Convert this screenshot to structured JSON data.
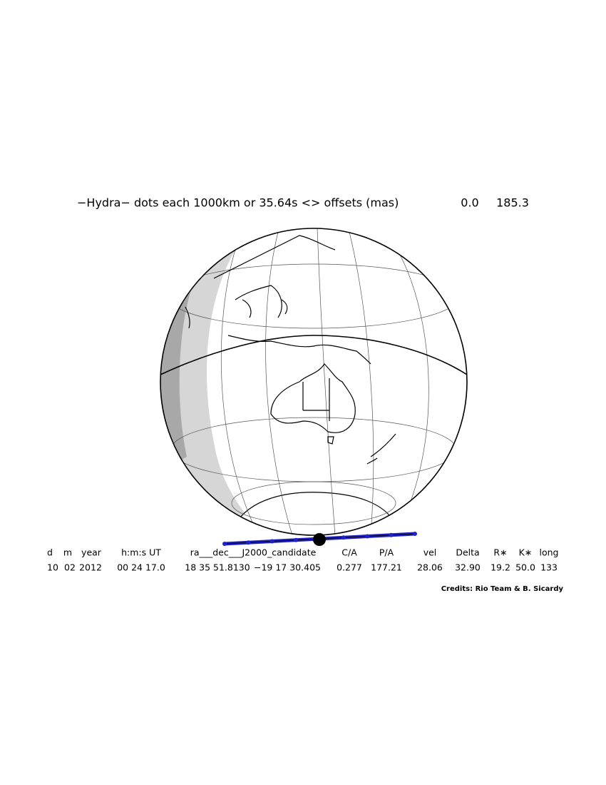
{
  "title": "−Hydra− dots each 1000km or 35.64s <> offsets (mas)",
  "offsets": [
    "0.0",
    "185.3"
  ],
  "table": {
    "headers": [
      "d",
      "m",
      "year",
      "h:m:s UT",
      "ra___dec___J2000_candidate",
      "C/A",
      "P/A",
      "vel",
      "Delta",
      "R∗",
      "K∗",
      "long"
    ],
    "values": [
      "10",
      "02",
      "2012",
      "00 24 17.0",
      "18 35 51.8130",
      "−19 17 30.405",
      "0.277",
      "177.21",
      "28.06",
      "32.90",
      "19.2",
      "50.0",
      "133"
    ]
  },
  "credits": "Credits: Rio Team & B. Sicardy"
}
